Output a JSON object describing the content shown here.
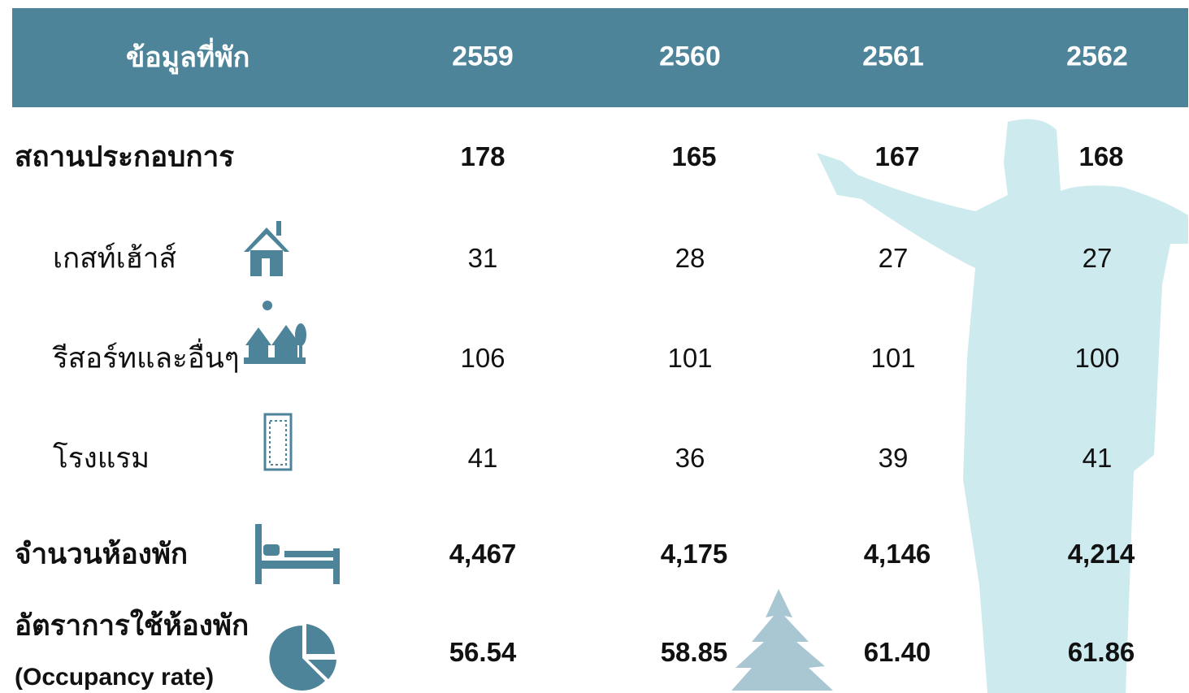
{
  "table": {
    "header": [
      "ข้อมูลที่พัก",
      "2559",
      "2560",
      "2561",
      "2562"
    ],
    "rows": [
      {
        "label": "สถานประกอบการ",
        "values": [
          "178",
          "165",
          "167",
          "168"
        ]
      },
      {
        "label": "เกสท์เฮ้าส์",
        "values": [
          "31",
          "28",
          "27",
          "27"
        ]
      },
      {
        "label": "รีสอร์ทและอื่นๆ",
        "values": [
          "106",
          "101",
          "101",
          "100"
        ]
      },
      {
        "label": "โรงแรม",
        "values": [
          "41",
          "36",
          "39",
          "41"
        ]
      },
      {
        "label": "จำนวนห้องพัก",
        "values": [
          "4,467",
          "4,175",
          "4,146",
          "4,214"
        ]
      },
      {
        "label": "อัตราการใช้ห้องพัก",
        "sublabel": "(Occupancy rate)",
        "values": [
          "56.54",
          "58.85",
          "61.40",
          "61.86"
        ]
      }
    ]
  }
}
